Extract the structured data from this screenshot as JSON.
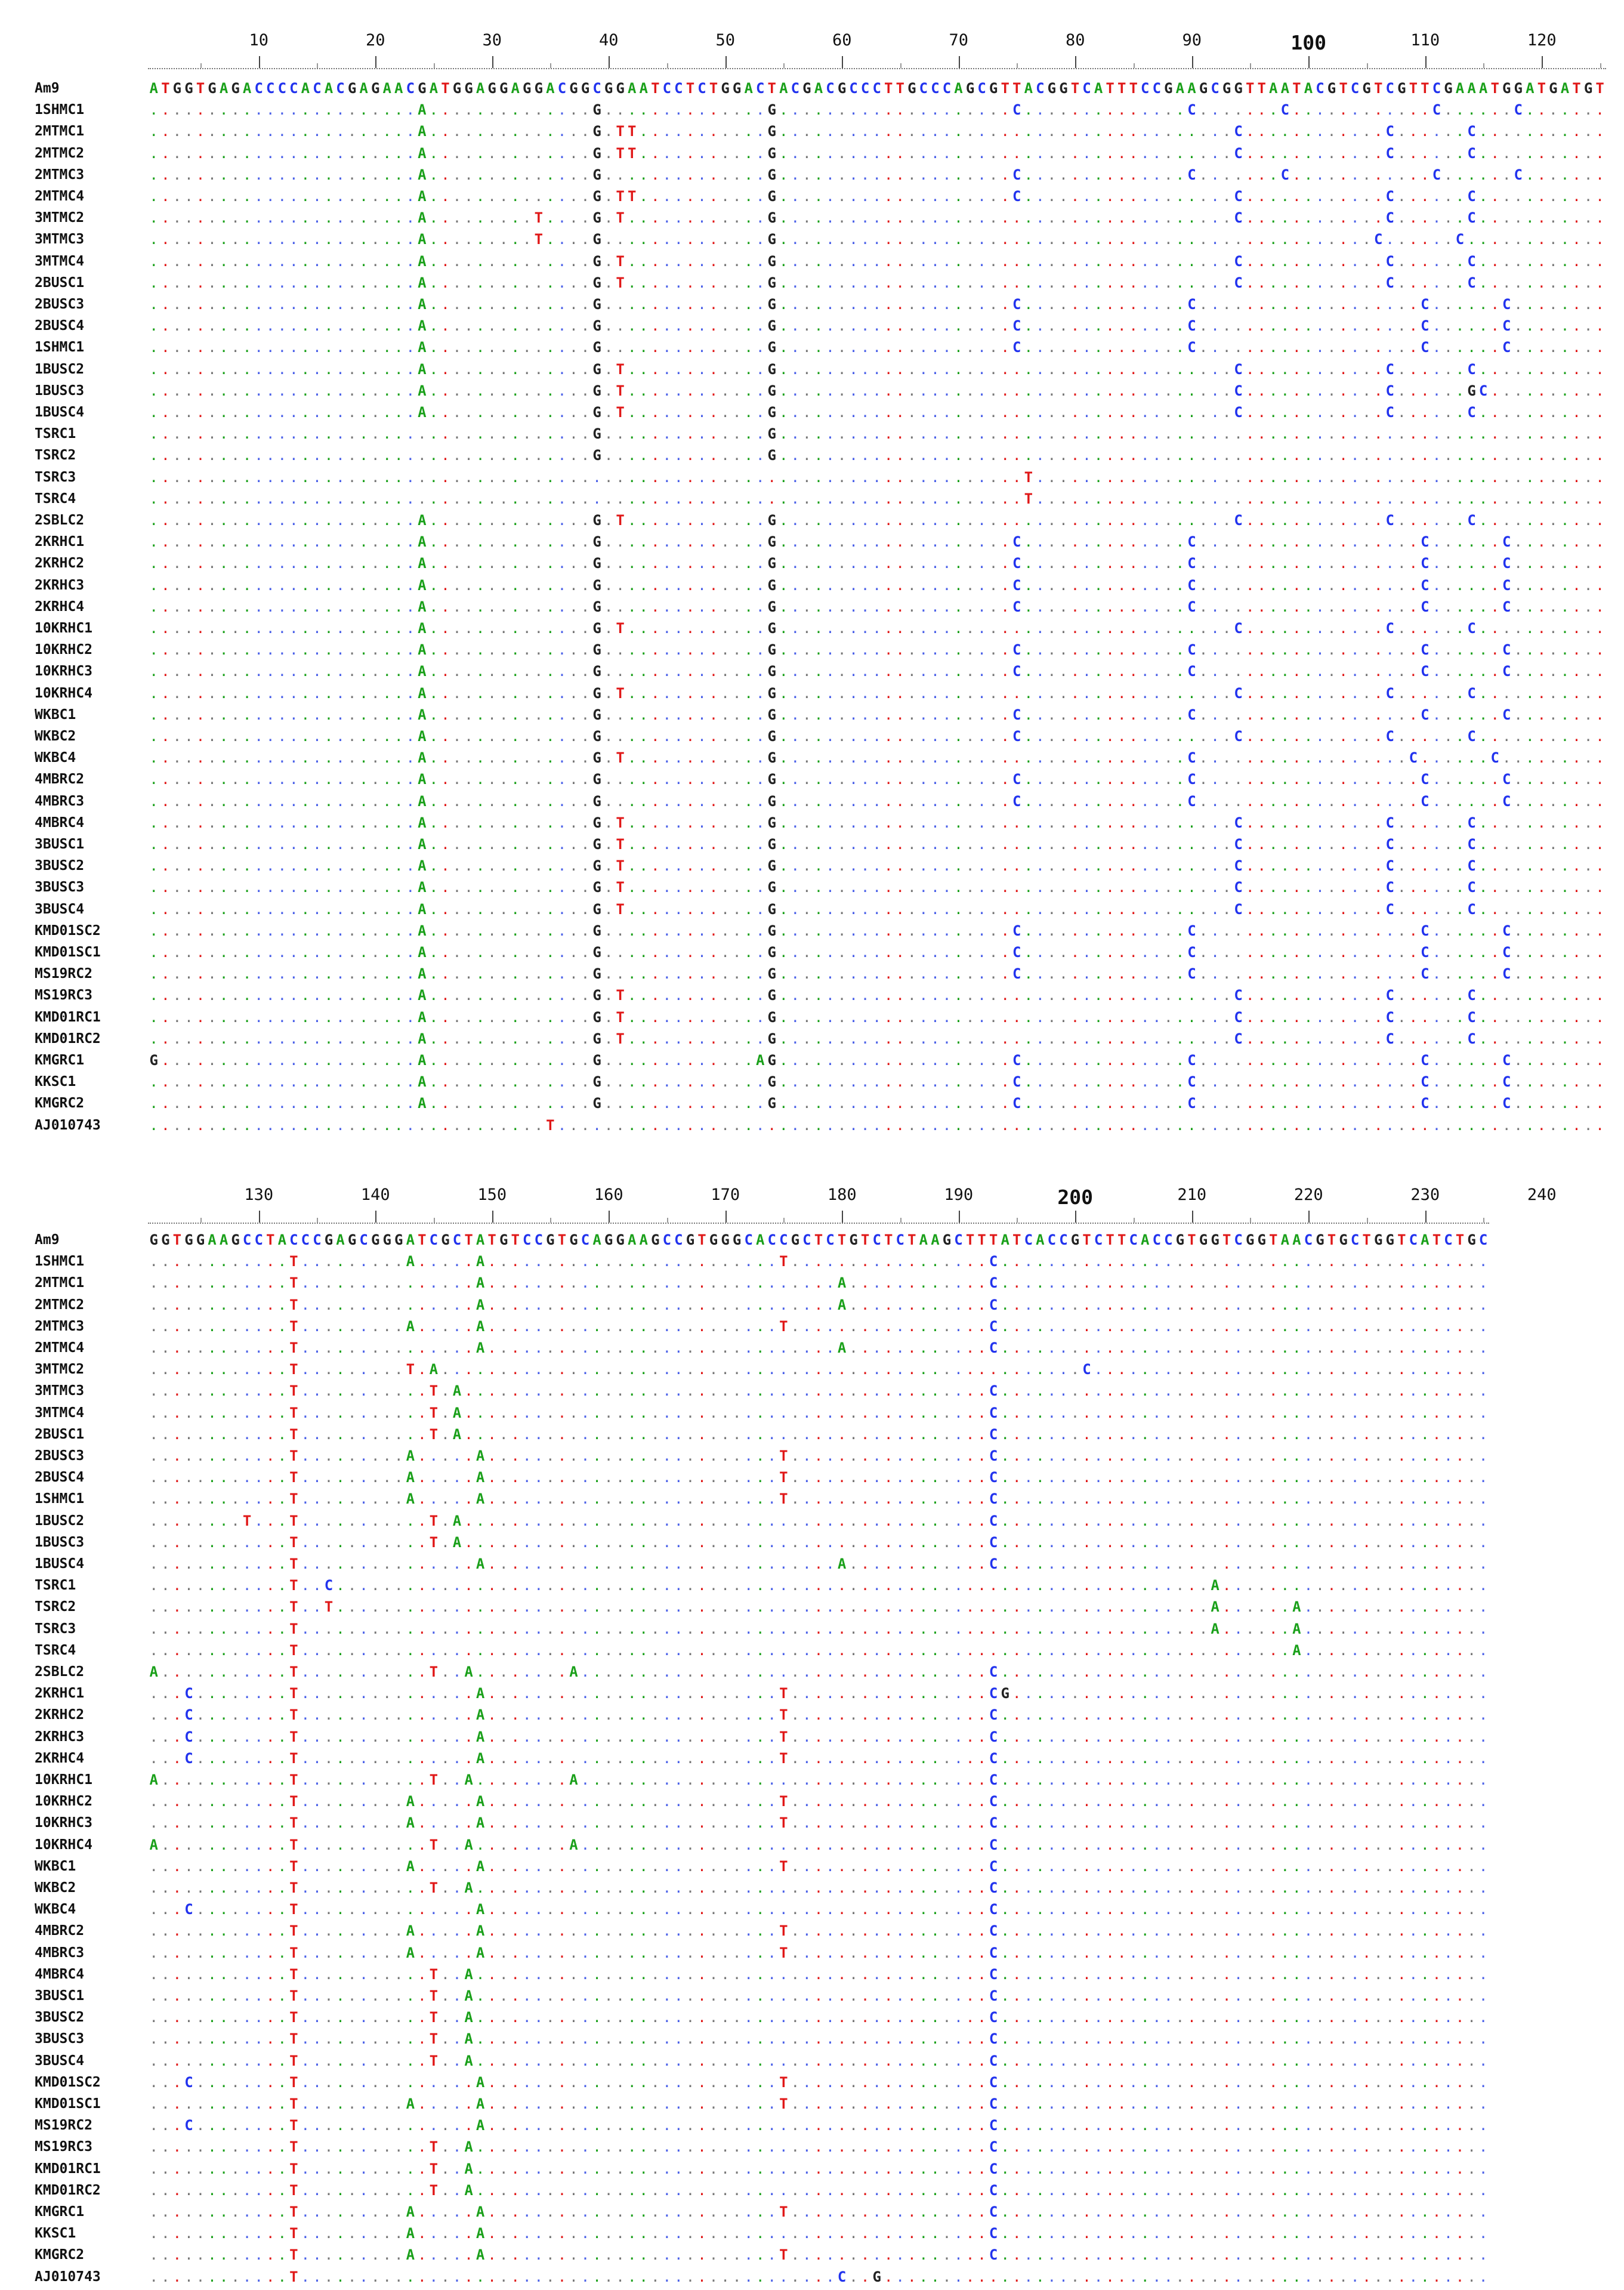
{
  "colors": {
    "A": "#1aa01a",
    "C": "#2233ee",
    "G": "#222222",
    "T": "#e01818",
    "dot_green": "#1aa01a",
    "dot_red": "#e01818",
    "dot_blue": "#4a60e8",
    "dot_gray": "#777777"
  },
  "row_names": [
    "Am9",
    "1SHMC1",
    "2MTMC1",
    "2MTMC2",
    "2MTMC3",
    "2MTMC4",
    "3MTMC2",
    "3MTMC3",
    "3MTMC4",
    "2BUSC1",
    "2BUSC3",
    "2BUSC4",
    "1SHMC1",
    "1BUSC2",
    "1BUSC3",
    "1BUSC4",
    "TSRC1",
    "TSRC2",
    "TSRC3",
    "TSRC4",
    "2SBLC2",
    "2KRHC1",
    "2KRHC2",
    "2KRHC3",
    "2KRHC4",
    "10KRHC1",
    "10KRHC2",
    "10KRHC3",
    "10KRHC4",
    "WKBC1",
    "WKBC2",
    "WKBC4",
    "4MBRC2",
    "4MBRC3",
    "4MBRC4",
    "3BUSC1",
    "3BUSC2",
    "3BUSC3",
    "3BUSC4",
    "KMD01SC2",
    "KMD01SC1",
    "MS19RC2",
    "MS19RC3",
    "KMD01RC1",
    "KMD01RC2",
    "KMGRC1",
    "KKSC1",
    "KMGRC2",
    "AJ010743"
  ],
  "blocks": [
    {
      "ruler_labels": [
        "10",
        "20",
        "30",
        "40",
        "50",
        "60",
        "70",
        "80",
        "90",
        "100",
        "110",
        "120"
      ],
      "reference": "ATGGTGAGACCCCACACGAGAACGATGGAGGAGGACGGCGGAATCCTCTGGACTACGACGCCCTTGCCCAGCGTTACGGTCATTTCCGAAGCGGTTAATACGTCGTCGTTCGAAATGGATGATGT",
      "rows": [
        {
          "1": ".......................A..............G..............G....................C..............C.......C............C......C.."
        },
        {
          "2": ".......................A..............G.TT...........G.......................................C............C......C.."
        },
        {
          "3": ".......................A..............G.TT...........G.......................................C............C......C.."
        },
        {
          "4": ".......................A..............G..............G....................C..............C.......C............C......C.."
        },
        {
          "5": ".......................A..............G.TT...........G....................C..................C............C......C.."
        },
        {
          "6": ".......................A.........T....G.T............G.......................................C............C......C.."
        },
        {
          "7": ".......................A.........T....G..............G...................................................C......C.."
        },
        {
          "8": ".......................A..............G.T............G.......................................C............C......C.."
        },
        {
          "9": ".......................A..............G.T............G.......................................C............C......C.."
        },
        {
          "10": ".......................A..............G..............G....................C..............C...................C......C.."
        },
        {
          "11": ".......................A..............G..............G....................C..............C...................C......C.."
        },
        {
          "12": ".......................A..............G..............G....................C..............C...................C......C.."
        },
        {
          "13": ".......................A..............G.T............G.......................................C............C......C.."
        },
        {
          "14": ".......................A..............G.T............G.......................................C............C......GC."
        },
        {
          "15": ".......................A..............G.T............G.......................................C............C......C.."
        },
        {
          "16": "......................................G..............G................................................................."
        },
        {
          "17": "......................................G..............G................................................................."
        },
        {
          "18": "...........................................................................T............................................."
        },
        {
          "19": "...........................................................................T............................................."
        },
        {
          "20": ".......................A..............G.T............G.......................................C............C......C.."
        },
        {
          "21": ".......................A..............G..............G....................C..............C...................C......C.."
        },
        {
          "22": ".......................A..............G..............G....................C..............C...................C......C.."
        },
        {
          "23": ".......................A..............G..............G....................C..............C...................C......C.."
        },
        {
          "24": ".......................A..............G..............G....................C..............C...................C......C.."
        },
        {
          "25": ".......................A..............G.T............G.......................................C............C......C.."
        },
        {
          "26": ".......................A..............G..............G....................C..............C...................C......C.."
        },
        {
          "27": ".......................A..............G..............G....................C..............C...................C......C.."
        },
        {
          "28": ".......................A..............G.T............G.......................................C............C......C.."
        },
        {
          "29": ".......................A..............G..............G....................C..............C...................C......C.."
        },
        {
          "30": ".......................A..............G..............G....................C..................C............C......C.."
        },
        {
          "31": ".......................A..............G.T............G...................................C..................C......C.."
        },
        {
          "32": ".......................A..............G..............G....................C..............C...................C......C.."
        },
        {
          "33": ".......................A..............G..............G....................C..............C...................C......C.."
        },
        {
          "34": ".......................A..............G.T............G.......................................C............C......C.."
        },
        {
          "35": ".......................A..............G.T............G.......................................C............C......C.."
        },
        {
          "36": ".......................A..............G.T............G.......................................C............C......C.."
        },
        {
          "37": ".......................A..............G.T............G.......................................C............C......C.."
        },
        {
          "38": ".......................A..............G.T............G.......................................C............C......C.."
        },
        {
          "39": ".......................A..............G..............G....................C..............C...................C......C.."
        },
        {
          "40": ".......................A..............G..............G....................C..............C...................C......C.."
        },
        {
          "41": ".......................A..............G..............G....................C..............C...................C......C.."
        },
        {
          "42": ".......................A..............G.T............G.......................................C............C......C.."
        },
        {
          "43": ".......................A..............G.T............G.......................................C............C......C.."
        },
        {
          "44": ".......................A..............G.T............G.......................................C............C......C.."
        },
        {
          "45": "G......................A..............G.............AG....................C..............C...................C......C.."
        },
        {
          "46": ".......................A..............G..............G....................C..............C...................C......C.."
        },
        {
          "47": ".......................A..............G..............G....................C..............C...................C......C.."
        },
        {
          "48": "..................................T................................................................................."
        }
      ]
    },
    {
      "ruler_labels": [
        "130",
        "140",
        "150",
        "160",
        "170",
        "180",
        "190",
        "200",
        "210",
        "220",
        "230",
        "240"
      ],
      "reference": "GGTGGAAGCCTACCCGAGCGGGATCGCTATGTCCGTGCAGGAAGCCGTGGGCACCGCTCTGTCTCTAAGCTTTATCACCGTCTTCACCGTGGTCGGTAACGTGCTGGTCATCTGC",
      "rows": [
        {
          "1": "............T.........A.....A.........................T.................C................................................"
        },
        {
          "2": "............T...............A..............................A............C................................................"
        },
        {
          "3": "............T...............A..............................A............C................................................"
        },
        {
          "4": "............T.........A.....A.........................T.................C................................................"
        },
        {
          "5": "............T...............A..............................A............C................................................"
        },
        {
          "6": "............T.........T.A.......................................................C.............................................."
        },
        {
          "7": "............T...........T.A.............................................C................................................"
        },
        {
          "8": "............T...........T.A.............................................C................................................"
        },
        {
          "9": "............T...........T.A.............................................C................................................"
        },
        {
          "10": "............T.........A.....A.........................T.................C................................................"
        },
        {
          "11": "............T.........A.....A.........................T.................C................................................"
        },
        {
          "12": "............T.........A.....A.........................T.................C................................................"
        },
        {
          "13": "........T...T...........T.A.............................................C................................................"
        },
        {
          "14": "............T...........T.A.............................................C................................................"
        },
        {
          "15": "............T...............A..............................A............C................................................"
        },
        {
          "16": "............T..C...........................................................................A.............................."
        },
        {
          "17": "............T..T...........................................................................A......A......................."
        },
        {
          "18": "............T..............................................................................A......A......................."
        },
        {
          "19": "............T.....................................................................................A......................."
        },
        {
          "20": "A...........T...........T..A........A...................................C................................................"
        },
        {
          "21": "...C........T...............A.........................T.................CG..............................................."
        },
        {
          "22": "...C........T...............A.........................T.................C................................................"
        },
        {
          "23": "...C........T...............A.........................T.................C................................................"
        },
        {
          "24": "...C........T...............A.........................T.................C................................................"
        },
        {
          "25": "A...........T...........T..A........A...................................C................................................"
        },
        {
          "26": "............T.........A.....A.........................T.................C................................................"
        },
        {
          "27": "............T.........A.....A.........................T.................C................................................"
        },
        {
          "28": "A...........T...........T..A........A...................................C................................................"
        },
        {
          "29": "............T.........A.....A.........................T.................C................................................"
        },
        {
          "30": "............T...........T..A............................................C................................................"
        },
        {
          "31": "...C........T...............A...........................................C................................................"
        },
        {
          "32": "............T.........A.....A.........................T.................C................................................"
        },
        {
          "33": "............T.........A.....A.........................T.................C................................................"
        },
        {
          "34": "............T...........T..A............................................C................................................"
        },
        {
          "35": "............T...........T..A............................................C................................................"
        },
        {
          "36": "............T...........T..A............................................C................................................"
        },
        {
          "37": "............T...........T..A............................................C................................................"
        },
        {
          "38": "............T...........T..A............................................C................................................"
        },
        {
          "39": "...C........T...............A.........................T.................C................................................"
        },
        {
          "40": "............T.........A.....A.........................T.................C................................................"
        },
        {
          "41": "...C........T...............A...........................................C................................................"
        },
        {
          "42": "............T...........T..A............................................C................................................"
        },
        {
          "43": "............T...........T..A............................................C................................................"
        },
        {
          "44": "............T...........T..A............................................C................................................"
        },
        {
          "45": "............T.........A.....A.........................T.................C................................................"
        },
        {
          "46": "............T.........A.....A...........................................C................................................"
        },
        {
          "47": "............T.........A.....A.........................T.................C................................................"
        },
        {
          "48": "............T..............................................C..G.........................................................."
        }
      ]
    }
  ]
}
